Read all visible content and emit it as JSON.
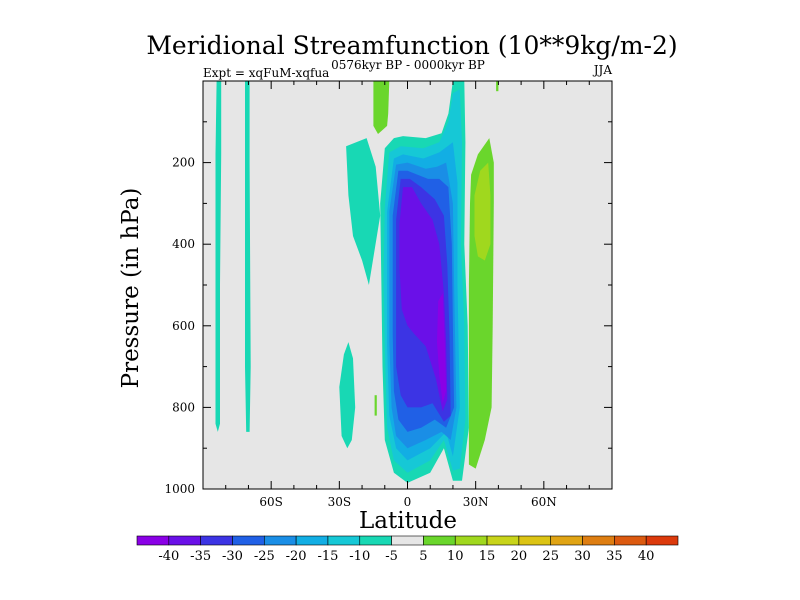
{
  "chart_data": {
    "type": "heatmap",
    "title": "Meridional Streamfunction (10**9kg/m-2)",
    "subtitle_left": "Expt = xqFuM-xqfua",
    "subtitle_center": "0576kyr BP - 0000kyr BP",
    "subtitle_right": "JJA",
    "xlabel": "Latitude",
    "ylabel": "Pressure (in hPa)",
    "xlim": [
      -90,
      90
    ],
    "ylim": [
      1000,
      0
    ],
    "x_ticks": [
      {
        "value": -60,
        "label": "60S"
      },
      {
        "value": -30,
        "label": "30S"
      },
      {
        "value": 0,
        "label": "0"
      },
      {
        "value": 30,
        "label": "30N"
      },
      {
        "value": 60,
        "label": "60N"
      }
    ],
    "y_ticks": [
      {
        "value": 200,
        "label": "200"
      },
      {
        "value": 400,
        "label": "400"
      },
      {
        "value": 600,
        "label": "600"
      },
      {
        "value": 800,
        "label": "800"
      },
      {
        "value": 1000,
        "label": "1000"
      }
    ],
    "background_color": "#e6e6e6",
    "colorbar": {
      "colors": [
        "#8a00e6",
        "#6a10e8",
        "#3c34e4",
        "#2060e6",
        "#1a8ee6",
        "#12aee4",
        "#16c8d6",
        "#18d8b4",
        "#e6e6e6",
        "#6ad62c",
        "#a0d81e",
        "#c8d41a",
        "#dcc414",
        "#e0a414",
        "#de7e12",
        "#dc5a10",
        "#dc3a0c"
      ],
      "labels": [
        "-40",
        "-35",
        "-30",
        "-25",
        "-20",
        "-15",
        "-10",
        "-5",
        "5",
        "10",
        "15",
        "20",
        "25",
        "30",
        "35",
        "40"
      ]
    },
    "regions": [
      {
        "level": "-5",
        "color": "#18d8b4",
        "points": [
          [
            -84,
            0
          ],
          [
            -82,
            0
          ],
          [
            -82,
            180
          ],
          [
            -82.5,
            500
          ],
          [
            -82.5,
            840
          ],
          [
            -83.5,
            860
          ],
          [
            -84.5,
            840
          ],
          [
            -84.5,
            500
          ],
          [
            -84.5,
            180
          ]
        ]
      },
      {
        "level": "-5",
        "color": "#18d8b4",
        "points": [
          [
            -71.5,
            0
          ],
          [
            -69.5,
            0
          ],
          [
            -69.5,
            200
          ],
          [
            -69,
            700
          ],
          [
            -69.5,
            860
          ],
          [
            -71,
            860
          ],
          [
            -71.5,
            700
          ],
          [
            -71.5,
            200
          ]
        ]
      },
      {
        "level": "-5",
        "color": "#18d8b4",
        "points": [
          [
            -27,
            160
          ],
          [
            -18,
            140
          ],
          [
            -14,
            210
          ],
          [
            -12,
            330
          ],
          [
            -17,
            500
          ],
          [
            -20,
            440
          ],
          [
            -24,
            380
          ],
          [
            -26,
            280
          ]
        ]
      },
      {
        "level": "-5",
        "color": "#18d8b4",
        "points": [
          [
            -30,
            750
          ],
          [
            -28,
            670
          ],
          [
            -26,
            640
          ],
          [
            -24,
            680
          ],
          [
            -23,
            800
          ],
          [
            -24.5,
            880
          ],
          [
            -26.5,
            900
          ],
          [
            -29,
            870
          ]
        ]
      },
      {
        "level": "-5",
        "color": "#18d8b4",
        "points": [
          [
            -12,
            300
          ],
          [
            -10,
            165
          ],
          [
            -6,
            140
          ],
          [
            -2,
            135
          ],
          [
            8,
            140
          ],
          [
            15,
            128
          ],
          [
            18,
            80
          ],
          [
            20,
            0
          ],
          [
            25,
            0
          ],
          [
            25.5,
            150
          ],
          [
            25,
            400
          ],
          [
            26.5,
            600
          ],
          [
            27,
            850
          ],
          [
            24,
            980
          ],
          [
            20,
            980
          ],
          [
            16,
            900
          ],
          [
            10,
            960
          ],
          [
            0,
            985
          ],
          [
            -6,
            960
          ],
          [
            -10,
            880
          ],
          [
            -11,
            700
          ],
          [
            -11.5,
            500
          ]
        ]
      },
      {
        "level": "-10",
        "color": "#16c8d6",
        "points": [
          [
            -10,
            310
          ],
          [
            -8,
            175
          ],
          [
            -3,
            160
          ],
          [
            7,
            165
          ],
          [
            14,
            150
          ],
          [
            18,
            100
          ],
          [
            20,
            30
          ],
          [
            23,
            20
          ],
          [
            24,
            150
          ],
          [
            23.5,
            400
          ],
          [
            25,
            600
          ],
          [
            25.5,
            830
          ],
          [
            23,
            950
          ],
          [
            20,
            955
          ],
          [
            16,
            880
          ],
          [
            10,
            930
          ],
          [
            0,
            960
          ],
          [
            -6,
            930
          ],
          [
            -9,
            850
          ],
          [
            -10,
            650
          ],
          [
            -10.5,
            480
          ]
        ]
      },
      {
        "level": "-15",
        "color": "#12aee4",
        "points": [
          [
            -9,
            320
          ],
          [
            -6,
            190
          ],
          [
            -2,
            180
          ],
          [
            7,
            190
          ],
          [
            14,
            175
          ],
          [
            20,
            150
          ],
          [
            22,
            250
          ],
          [
            22,
            500
          ],
          [
            23,
            800
          ],
          [
            20,
            920
          ],
          [
            17,
            860
          ],
          [
            10,
            900
          ],
          [
            0,
            930
          ],
          [
            -5,
            900
          ],
          [
            -8,
            820
          ],
          [
            -9,
            650
          ],
          [
            -9,
            480
          ]
        ]
      },
      {
        "level": "-20",
        "color": "#1a8ee6",
        "points": [
          [
            -8,
            320
          ],
          [
            -5,
            205
          ],
          [
            0,
            200
          ],
          [
            8,
            215
          ],
          [
            13,
            210
          ],
          [
            17,
            200
          ],
          [
            20,
            300
          ],
          [
            20.5,
            500
          ],
          [
            21.5,
            800
          ],
          [
            19,
            880
          ],
          [
            15,
            860
          ],
          [
            8,
            880
          ],
          [
            0,
            900
          ],
          [
            -5,
            870
          ],
          [
            -7,
            800
          ],
          [
            -8,
            640
          ],
          [
            -8,
            480
          ]
        ]
      },
      {
        "level": "-25",
        "color": "#2060e6",
        "points": [
          [
            -6.5,
            330
          ],
          [
            -4,
            220
          ],
          [
            0,
            220
          ],
          [
            9,
            240
          ],
          [
            14,
            240
          ],
          [
            18,
            260
          ],
          [
            19.5,
            400
          ],
          [
            20,
            600
          ],
          [
            20.5,
            800
          ],
          [
            17,
            850
          ],
          [
            12,
            830
          ],
          [
            6,
            850
          ],
          [
            0,
            860
          ],
          [
            -4,
            830
          ],
          [
            -6,
            760
          ],
          [
            -6.5,
            620
          ],
          [
            -6.5,
            480
          ]
        ]
      },
      {
        "level": "-30",
        "color": "#3c34e4",
        "points": [
          [
            -5,
            340
          ],
          [
            -3,
            240
          ],
          [
            1,
            240
          ],
          [
            6,
            260
          ],
          [
            12,
            290
          ],
          [
            16,
            330
          ],
          [
            17.5,
            450
          ],
          [
            18.5,
            620
          ],
          [
            19,
            820
          ],
          [
            16,
            835
          ],
          [
            11,
            790
          ],
          [
            6,
            800
          ],
          [
            0,
            800
          ],
          [
            -3,
            770
          ],
          [
            -5,
            700
          ],
          [
            -5,
            580
          ],
          [
            -5,
            460
          ]
        ]
      },
      {
        "level": "-35",
        "color": "#6a10e8",
        "points": [
          [
            -3.5,
            350
          ],
          [
            -2,
            260
          ],
          [
            2,
            260
          ],
          [
            6,
            300
          ],
          [
            11,
            340
          ],
          [
            14,
            400
          ],
          [
            16,
            520
          ],
          [
            17,
            640
          ],
          [
            17.5,
            780
          ],
          [
            15.5,
            810
          ],
          [
            12.5,
            730
          ],
          [
            8,
            650
          ],
          [
            3,
            620
          ],
          [
            0,
            600
          ],
          [
            -2.5,
            560
          ],
          [
            -3.5,
            460
          ]
        ]
      },
      {
        "level": "-40",
        "color": "#8a00e6",
        "points": [
          [
            13.5,
            540
          ],
          [
            15.5,
            520
          ],
          [
            16.5,
            650
          ],
          [
            17,
            760
          ],
          [
            15.5,
            790
          ],
          [
            14,
            720
          ],
          [
            13,
            640
          ]
        ]
      },
      {
        "level": "5",
        "color": "#6ad62c",
        "points": [
          [
            -15,
            0
          ],
          [
            -8,
            0
          ],
          [
            -8.5,
            80
          ],
          [
            -9,
            110
          ],
          [
            -13,
            130
          ],
          [
            -15,
            110
          ]
        ]
      },
      {
        "level": "5",
        "color": "#6ad62c",
        "points": [
          [
            28,
            230
          ],
          [
            31,
            180
          ],
          [
            36,
            140
          ],
          [
            38,
            200
          ],
          [
            38,
            300
          ],
          [
            37.5,
            600
          ],
          [
            37,
            800
          ],
          [
            34,
            880
          ],
          [
            30,
            950
          ],
          [
            27,
            940
          ],
          [
            27,
            800
          ],
          [
            27,
            500
          ],
          [
            27.5,
            300
          ]
        ]
      },
      {
        "level": "10",
        "color": "#a0d81e",
        "points": [
          [
            29.5,
            280
          ],
          [
            32,
            220
          ],
          [
            35.5,
            200
          ],
          [
            36.5,
            280
          ],
          [
            36.5,
            400
          ],
          [
            34,
            440
          ],
          [
            31,
            430
          ],
          [
            29.5,
            380
          ]
        ]
      },
      {
        "level": "5",
        "color": "#6ad62c",
        "points": [
          [
            -14.5,
            770
          ],
          [
            -13.5,
            770
          ],
          [
            -13.5,
            820
          ],
          [
            -14.5,
            820
          ]
        ]
      },
      {
        "level": "5",
        "color": "#6ad62c",
        "points": [
          [
            39,
            0
          ],
          [
            40,
            0
          ],
          [
            40,
            25
          ],
          [
            39,
            25
          ]
        ]
      }
    ]
  }
}
